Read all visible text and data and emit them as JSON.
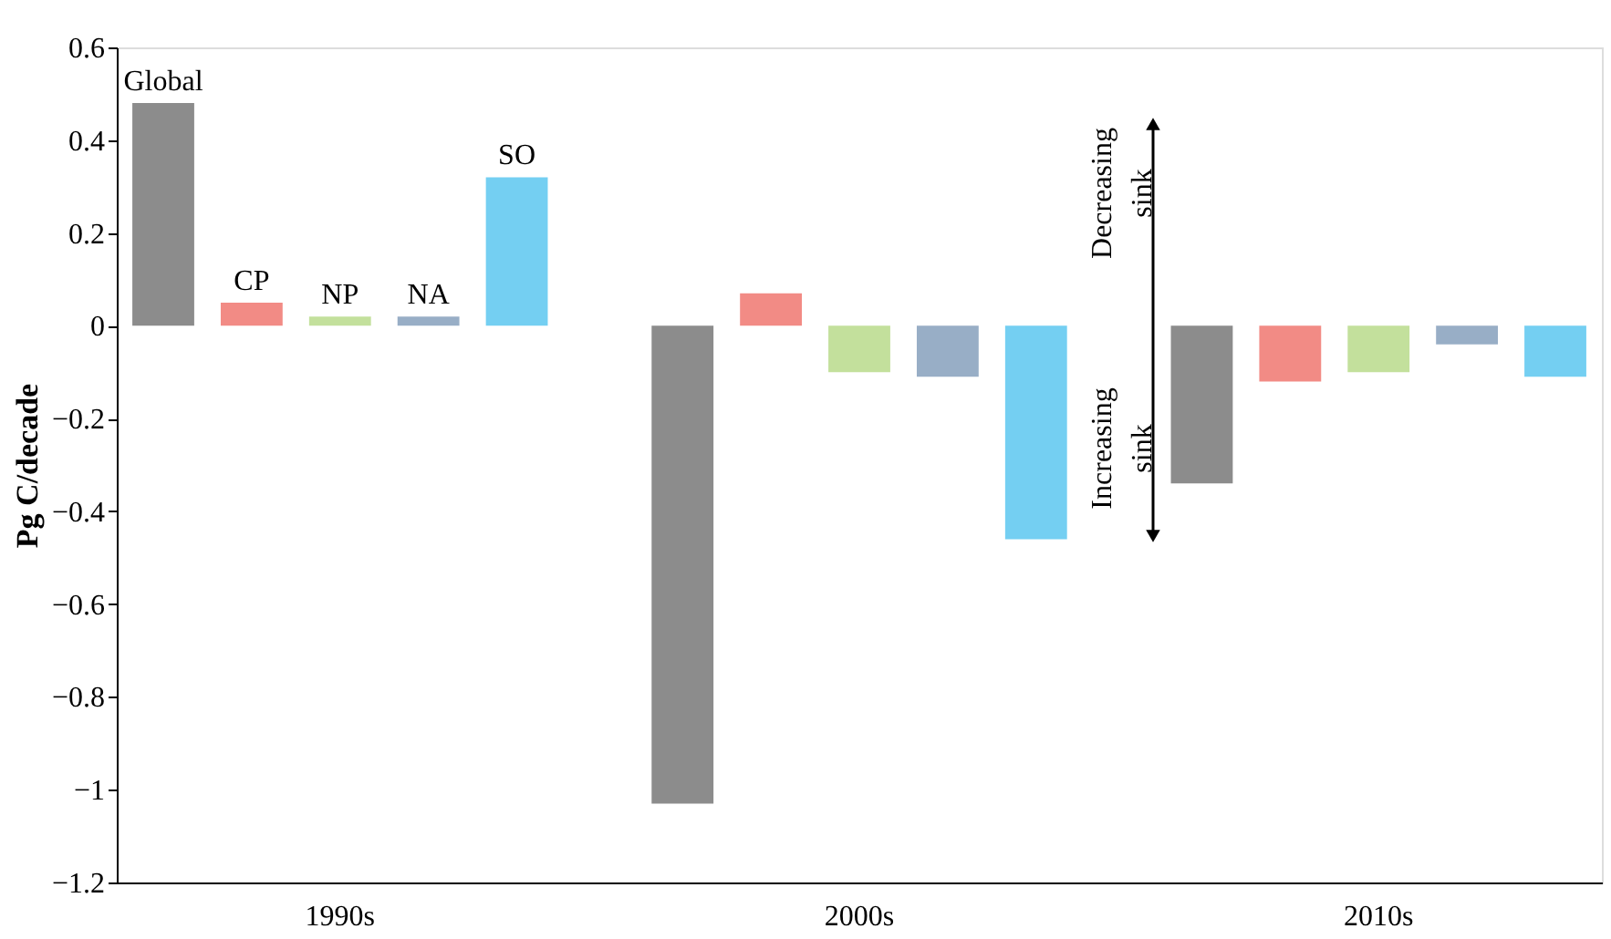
{
  "chart_data": {
    "type": "bar",
    "ylabel": "Pg C/decade",
    "categories": [
      "1990s",
      "2000s",
      "2010s"
    ],
    "series": [
      {
        "name": "Global",
        "color": "#8c8c8c",
        "values": [
          0.48,
          -1.03,
          -0.34
        ]
      },
      {
        "name": "CP",
        "color": "#f28b85",
        "values": [
          0.05,
          0.07,
          -0.12
        ]
      },
      {
        "name": "NP",
        "color": "#c3e09c",
        "values": [
          0.02,
          -0.1,
          -0.1
        ]
      },
      {
        "name": "NA",
        "color": "#98aec6",
        "values": [
          0.02,
          -0.11,
          -0.04
        ]
      },
      {
        "name": "SO",
        "color": "#74cff2",
        "values": [
          0.32,
          -0.46,
          -0.11
        ]
      }
    ],
    "ylim": [
      -1.2,
      0.6
    ],
    "yticks": [
      -1.2,
      -1,
      -0.8,
      -0.6,
      -0.4,
      -0.2,
      0,
      0.2,
      0.4,
      0.6
    ],
    "grid": false,
    "legend": false,
    "annotations": [
      "Decreasing\nsink",
      "Increasing\nsink"
    ]
  }
}
